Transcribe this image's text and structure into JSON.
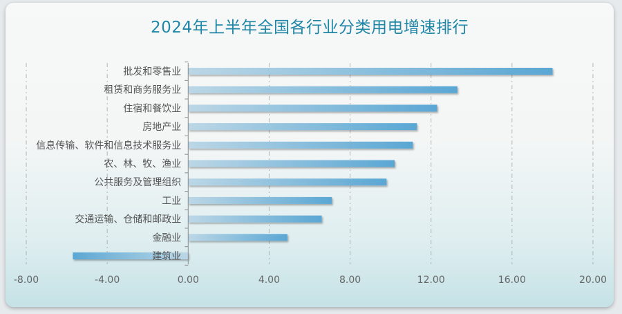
{
  "colors": {
    "title": "#1f86a6",
    "bar_light": "#bcd7e6",
    "bar_dark": "#5aa7d4",
    "grid": "#9a9a9a",
    "axis": "#8a8a8a"
  },
  "chart_data": {
    "type": "bar",
    "orientation": "horizontal",
    "title": "2024年上半年全国各行业分类用电增速排行",
    "categories": [
      "批发和零售业",
      "租赁和商务服务业",
      "住宿和餐饮业",
      "房地产业",
      "信息传输、软件和信息技术服务业",
      "农、林、牧、渔业",
      "公共服务及管理组织",
      "工业",
      "交通运输、仓储和邮政业",
      "金融业",
      "建筑业"
    ],
    "values": [
      18.0,
      13.3,
      12.3,
      11.3,
      11.1,
      10.2,
      9.8,
      7.1,
      6.6,
      4.9,
      -5.7
    ],
    "xlim": [
      -8,
      20
    ],
    "xticks": [
      "-8.00",
      "-4.00",
      "0.00",
      "4.00",
      "8.00",
      "12.00",
      "16.00",
      "20.00"
    ],
    "grid": true,
    "legend": "none",
    "xlabel": "",
    "ylabel": ""
  }
}
